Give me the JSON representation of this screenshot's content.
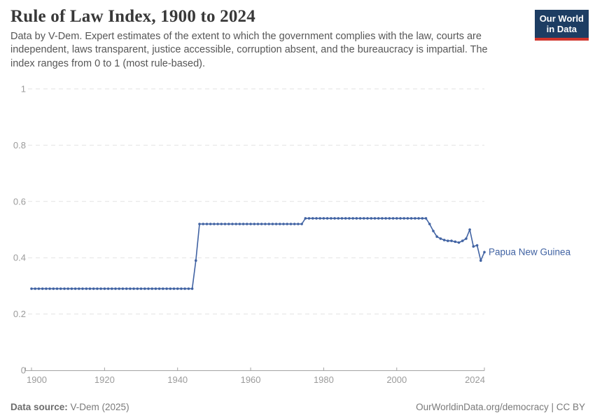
{
  "header": {
    "title": "Rule of Law Index, 1900 to 2024",
    "subtitle": "Data by V-Dem. Expert estimates of the extent to which the government complies with the law, courts are independent, laws transparent, justice accessible, corruption absent, and the bureaucracy is impartial. The index ranges from 0 to 1 (most rule-based)."
  },
  "logo": {
    "line1": "Our World",
    "line2": "in Data"
  },
  "footer": {
    "source_label": "Data source:",
    "source_value": " V-Dem (2025)",
    "right_text": "OurWorldinData.org/democracy | CC BY"
  },
  "colors": {
    "series": "#4163a3",
    "grid": "#e2e2e2",
    "axis": "#a3a3a3",
    "tick_label": "#9b9b9b",
    "logo_bg": "#1d3d63",
    "logo_red": "#d0342c"
  },
  "chart_data": {
    "type": "line",
    "title": "Rule of Law Index, 1900 to 2024",
    "xlabel": "",
    "ylabel": "",
    "xlim": [
      1900,
      2024
    ],
    "ylim": [
      0,
      1
    ],
    "x_ticks": [
      1900,
      1920,
      1940,
      1960,
      1980,
      2000,
      2024
    ],
    "y_ticks": [
      0,
      0.2,
      0.4,
      0.6,
      0.8,
      1
    ],
    "grid": "horizontal-dashed",
    "legend_position": "end-of-line-label",
    "series": [
      {
        "name": "Papua New Guinea",
        "points": [
          [
            1900,
            0.29
          ],
          [
            1901,
            0.29
          ],
          [
            1902,
            0.29
          ],
          [
            1903,
            0.29
          ],
          [
            1904,
            0.29
          ],
          [
            1905,
            0.29
          ],
          [
            1906,
            0.29
          ],
          [
            1907,
            0.29
          ],
          [
            1908,
            0.29
          ],
          [
            1909,
            0.29
          ],
          [
            1910,
            0.29
          ],
          [
            1911,
            0.29
          ],
          [
            1912,
            0.29
          ],
          [
            1913,
            0.29
          ],
          [
            1914,
            0.29
          ],
          [
            1915,
            0.29
          ],
          [
            1916,
            0.29
          ],
          [
            1917,
            0.29
          ],
          [
            1918,
            0.29
          ],
          [
            1919,
            0.29
          ],
          [
            1920,
            0.29
          ],
          [
            1921,
            0.29
          ],
          [
            1922,
            0.29
          ],
          [
            1923,
            0.29
          ],
          [
            1924,
            0.29
          ],
          [
            1925,
            0.29
          ],
          [
            1926,
            0.29
          ],
          [
            1927,
            0.29
          ],
          [
            1928,
            0.29
          ],
          [
            1929,
            0.29
          ],
          [
            1930,
            0.29
          ],
          [
            1931,
            0.29
          ],
          [
            1932,
            0.29
          ],
          [
            1933,
            0.29
          ],
          [
            1934,
            0.29
          ],
          [
            1935,
            0.29
          ],
          [
            1936,
            0.29
          ],
          [
            1937,
            0.29
          ],
          [
            1938,
            0.29
          ],
          [
            1939,
            0.29
          ],
          [
            1940,
            0.29
          ],
          [
            1941,
            0.29
          ],
          [
            1942,
            0.29
          ],
          [
            1943,
            0.29
          ],
          [
            1944,
            0.29
          ],
          [
            1945,
            0.39
          ],
          [
            1946,
            0.52
          ],
          [
            1947,
            0.52
          ],
          [
            1948,
            0.52
          ],
          [
            1949,
            0.52
          ],
          [
            1950,
            0.52
          ],
          [
            1951,
            0.52
          ],
          [
            1952,
            0.52
          ],
          [
            1953,
            0.52
          ],
          [
            1954,
            0.52
          ],
          [
            1955,
            0.52
          ],
          [
            1956,
            0.52
          ],
          [
            1957,
            0.52
          ],
          [
            1958,
            0.52
          ],
          [
            1959,
            0.52
          ],
          [
            1960,
            0.52
          ],
          [
            1961,
            0.52
          ],
          [
            1962,
            0.52
          ],
          [
            1963,
            0.52
          ],
          [
            1964,
            0.52
          ],
          [
            1965,
            0.52
          ],
          [
            1966,
            0.52
          ],
          [
            1967,
            0.52
          ],
          [
            1968,
            0.52
          ],
          [
            1969,
            0.52
          ],
          [
            1970,
            0.52
          ],
          [
            1971,
            0.52
          ],
          [
            1972,
            0.52
          ],
          [
            1973,
            0.52
          ],
          [
            1974,
            0.52
          ],
          [
            1975,
            0.54
          ],
          [
            1976,
            0.54
          ],
          [
            1977,
            0.54
          ],
          [
            1978,
            0.54
          ],
          [
            1979,
            0.54
          ],
          [
            1980,
            0.54
          ],
          [
            1981,
            0.54
          ],
          [
            1982,
            0.54
          ],
          [
            1983,
            0.54
          ],
          [
            1984,
            0.54
          ],
          [
            1985,
            0.54
          ],
          [
            1986,
            0.54
          ],
          [
            1987,
            0.54
          ],
          [
            1988,
            0.54
          ],
          [
            1989,
            0.54
          ],
          [
            1990,
            0.54
          ],
          [
            1991,
            0.54
          ],
          [
            1992,
            0.54
          ],
          [
            1993,
            0.54
          ],
          [
            1994,
            0.54
          ],
          [
            1995,
            0.54
          ],
          [
            1996,
            0.54
          ],
          [
            1997,
            0.54
          ],
          [
            1998,
            0.54
          ],
          [
            1999,
            0.54
          ],
          [
            2000,
            0.54
          ],
          [
            2001,
            0.54
          ],
          [
            2002,
            0.54
          ],
          [
            2003,
            0.54
          ],
          [
            2004,
            0.54
          ],
          [
            2005,
            0.54
          ],
          [
            2006,
            0.54
          ],
          [
            2007,
            0.54
          ],
          [
            2008,
            0.54
          ],
          [
            2009,
            0.52
          ],
          [
            2010,
            0.495
          ],
          [
            2011,
            0.475
          ],
          [
            2012,
            0.468
          ],
          [
            2013,
            0.463
          ],
          [
            2014,
            0.46
          ],
          [
            2015,
            0.46
          ],
          [
            2016,
            0.457
          ],
          [
            2017,
            0.454
          ],
          [
            2018,
            0.46
          ],
          [
            2019,
            0.468
          ],
          [
            2020,
            0.5
          ],
          [
            2021,
            0.44
          ],
          [
            2022,
            0.444
          ],
          [
            2023,
            0.39
          ],
          [
            2024,
            0.42
          ]
        ]
      }
    ]
  }
}
